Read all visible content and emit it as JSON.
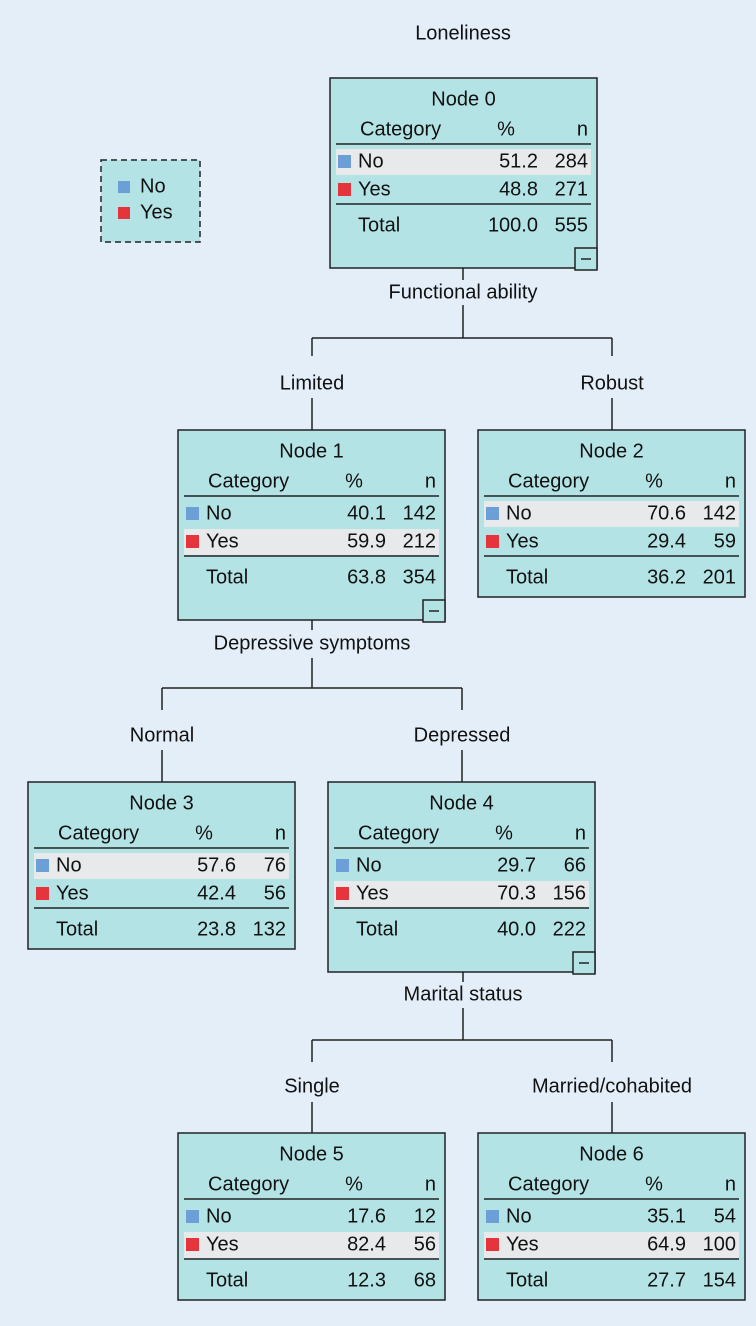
{
  "title": "Loneliness",
  "legend": [
    {
      "label": "No",
      "color": "#6c9fd6"
    },
    {
      "label": "Yes",
      "color": "#e5343b"
    }
  ],
  "nodes": [
    {
      "title": "Node 0",
      "header": [
        "Category",
        "%",
        "n"
      ],
      "rows": [
        [
          "No",
          "51.2",
          "284"
        ],
        [
          "Yes",
          "48.8",
          "271"
        ]
      ],
      "total": [
        "Total",
        "100.0",
        "555"
      ]
    },
    {
      "title": "Node 1",
      "header": [
        "Category",
        "%",
        "n"
      ],
      "rows": [
        [
          "No",
          "40.1",
          "142"
        ],
        [
          "Yes",
          "59.9",
          "212"
        ]
      ],
      "total": [
        "Total",
        "63.8",
        "354"
      ]
    },
    {
      "title": "Node 2",
      "header": [
        "Category",
        "%",
        "n"
      ],
      "rows": [
        [
          "No",
          "70.6",
          "142"
        ],
        [
          "Yes",
          "29.4",
          "59"
        ]
      ],
      "total": [
        "Total",
        "36.2",
        "201"
      ]
    },
    {
      "title": "Node 3",
      "header": [
        "Category",
        "%",
        "n"
      ],
      "rows": [
        [
          "No",
          "57.6",
          "76"
        ],
        [
          "Yes",
          "42.4",
          "56"
        ]
      ],
      "total": [
        "Total",
        "23.8",
        "132"
      ]
    },
    {
      "title": "Node 4",
      "header": [
        "Category",
        "%",
        "n"
      ],
      "rows": [
        [
          "No",
          "29.7",
          "66"
        ],
        [
          "Yes",
          "70.3",
          "156"
        ]
      ],
      "total": [
        "Total",
        "40.0",
        "222"
      ]
    },
    {
      "title": "Node 5",
      "header": [
        "Category",
        "%",
        "n"
      ],
      "rows": [
        [
          "No",
          "17.6",
          "12"
        ],
        [
          "Yes",
          "82.4",
          "56"
        ]
      ],
      "total": [
        "Total",
        "12.3",
        "68"
      ]
    },
    {
      "title": "Node 6",
      "header": [
        "Category",
        "%",
        "n"
      ],
      "rows": [
        [
          "No",
          "35.1",
          "54"
        ],
        [
          "Yes",
          "64.9",
          "100"
        ]
      ],
      "total": [
        "Total",
        "27.7",
        "154"
      ]
    }
  ],
  "splits": [
    {
      "label": "Functional ability",
      "branches": [
        "Limited",
        "Robust"
      ]
    },
    {
      "label": "Depressive symptoms",
      "branches": [
        "Normal",
        "Depressed"
      ]
    },
    {
      "label": "Marital status",
      "branches": [
        "Single",
        "Married/cohabited"
      ]
    }
  ]
}
